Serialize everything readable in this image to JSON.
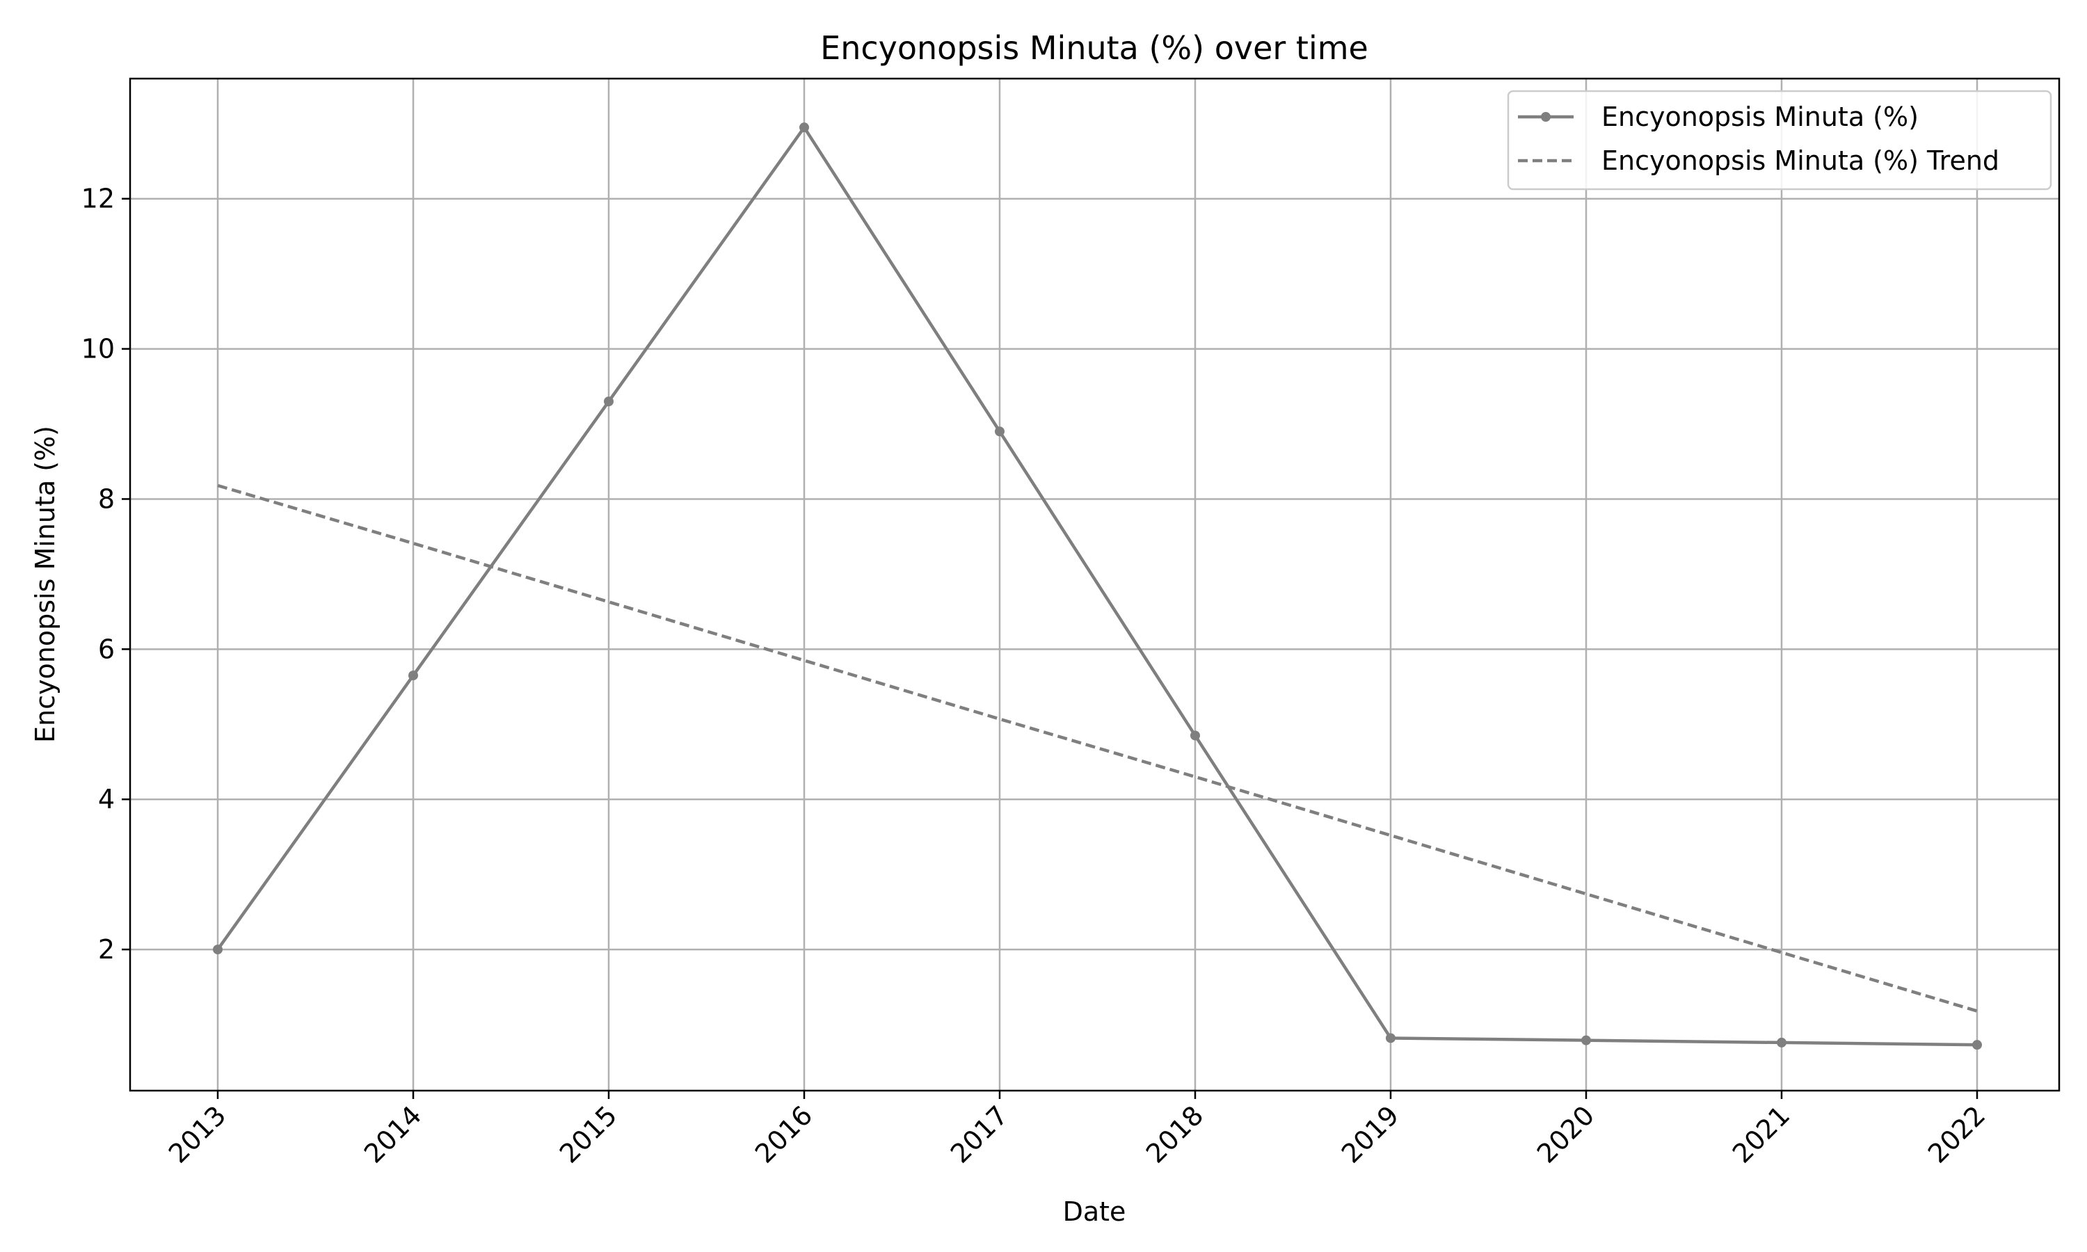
{
  "chart_data": {
    "type": "line",
    "title": "Encyonopsis Minuta (%) over time",
    "xlabel": "Date",
    "ylabel": "Encyonopsis Minuta (%)",
    "x": [
      "2013",
      "2014",
      "2015",
      "2016",
      "2017",
      "2018",
      "2019",
      "2020",
      "2021",
      "2022"
    ],
    "x_tick_labels": [
      "2013",
      "2014",
      "2015",
      "2016",
      "2017",
      "2018",
      "2019",
      "2020",
      "2021",
      "2022"
    ],
    "y_ticks": [
      2,
      4,
      6,
      8,
      10,
      12
    ],
    "ylim": [
      0.12,
      13.6
    ],
    "grid": true,
    "legend_position": "top-right",
    "series": [
      {
        "name": "Encyonopsis Minuta (%)",
        "style": "solid-with-markers",
        "color": "#7f7f7f",
        "values": [
          2.0,
          5.65,
          9.3,
          12.95,
          8.9,
          4.85,
          0.82,
          0.79,
          0.76,
          0.73
        ]
      },
      {
        "name": "Encyonopsis Minuta (%) Trend",
        "style": "dashed",
        "color": "#7f7f7f",
        "values": [
          8.18,
          7.41,
          6.63,
          5.85,
          5.07,
          4.3,
          3.52,
          2.74,
          1.96,
          1.18
        ]
      }
    ]
  }
}
